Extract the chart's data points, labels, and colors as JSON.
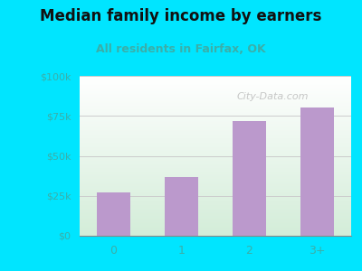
{
  "title": "Median family income by earners",
  "subtitle": "All residents in Fairfax, OK",
  "categories": [
    "0",
    "1",
    "2",
    "3+"
  ],
  "values": [
    27000,
    37000,
    72000,
    80000
  ],
  "bar_color": "#bb99cc",
  "title_color": "#111111",
  "subtitle_color": "#3aafa9",
  "bg_color": "#00e5ff",
  "yticks": [
    0,
    25000,
    50000,
    75000,
    100000
  ],
  "ytick_labels": [
    "$0",
    "$25k",
    "$50k",
    "$75k",
    "$100k"
  ],
  "ylim": [
    0,
    100000
  ],
  "watermark": "City-Data.com",
  "watermark_color": "#aaaaaa",
  "tick_label_color": "#3aafa9",
  "grid_color": "#cccccc"
}
